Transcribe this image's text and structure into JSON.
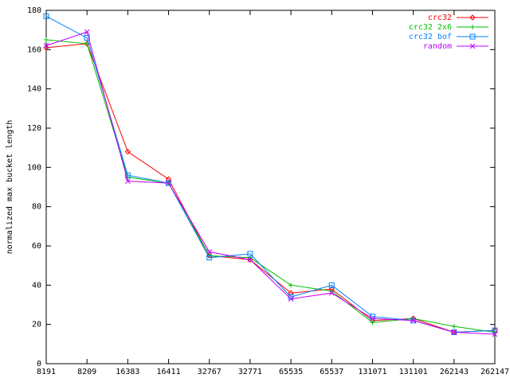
{
  "chart_data": {
    "type": "line",
    "y_label": "normalized max bucket length",
    "categories": [
      "8191",
      "8209",
      "16383",
      "16411",
      "32767",
      "32771",
      "65535",
      "65537",
      "131071",
      "131101",
      "262143",
      "262147"
    ],
    "series": [
      {
        "name": "crc32",
        "color": "#ff0000",
        "marker": "diamond",
        "values": [
          161,
          163,
          108,
          94,
          55,
          53,
          36,
          38,
          22,
          23,
          16,
          17
        ]
      },
      {
        "name": "crc32 2x6",
        "color": "#00c000",
        "marker": "plus",
        "values": [
          165,
          163,
          95,
          92,
          55,
          54,
          40,
          37,
          21,
          23,
          19,
          16
        ]
      },
      {
        "name": "crc32 bof",
        "color": "#0080ff",
        "marker": "square",
        "values": [
          177,
          166,
          96,
          92,
          54,
          56,
          34,
          40,
          24,
          22,
          16,
          17
        ]
      },
      {
        "name": "random",
        "color": "#c000ff",
        "marker": "cross",
        "values": [
          162,
          169,
          93,
          92,
          57,
          53,
          33,
          36,
          23,
          22,
          16,
          15
        ]
      }
    ],
    "ylim": [
      0,
      180
    ],
    "yticks": [
      0,
      20,
      40,
      60,
      80,
      100,
      120,
      140,
      160,
      180
    ],
    "legend": "top-right"
  }
}
